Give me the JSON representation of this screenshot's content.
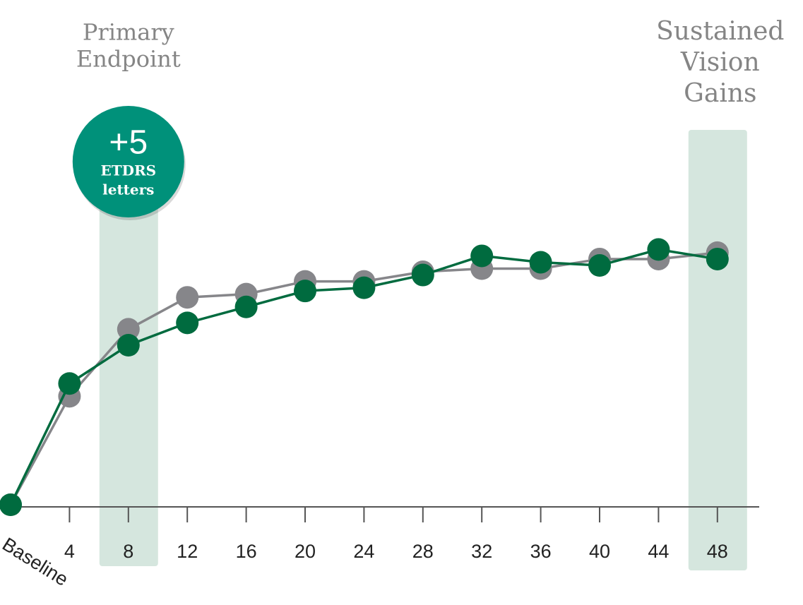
{
  "chart_data": {
    "type": "line",
    "categories": [
      "Baseline",
      "4",
      "8",
      "12",
      "16",
      "20",
      "24",
      "28",
      "32",
      "36",
      "40",
      "44",
      "48"
    ],
    "series": [
      {
        "color": "#86868a",
        "values": [
          0,
          3.4,
          5.5,
          6.5,
          6.6,
          7.0,
          7.0,
          7.3,
          7.4,
          7.4,
          7.7,
          7.7,
          7.9
        ]
      },
      {
        "color": "#006b3f",
        "values": [
          0,
          3.8,
          5.0,
          5.7,
          6.2,
          6.7,
          6.8,
          7.2,
          7.8,
          7.6,
          7.5,
          8.0,
          7.7
        ]
      }
    ],
    "ylim": [
      0,
      10
    ],
    "highlight_color": "#d5e6de",
    "highlights": [
      {
        "at": "8",
        "label": [
          "Primary",
          "Endpoint"
        ]
      },
      {
        "at": "48",
        "label": [
          "Sustained",
          "Vision",
          "Gains"
        ]
      }
    ],
    "badge": {
      "text": "+5",
      "subtext": [
        "ETDRS",
        "letters"
      ],
      "color": "#00917a"
    }
  }
}
